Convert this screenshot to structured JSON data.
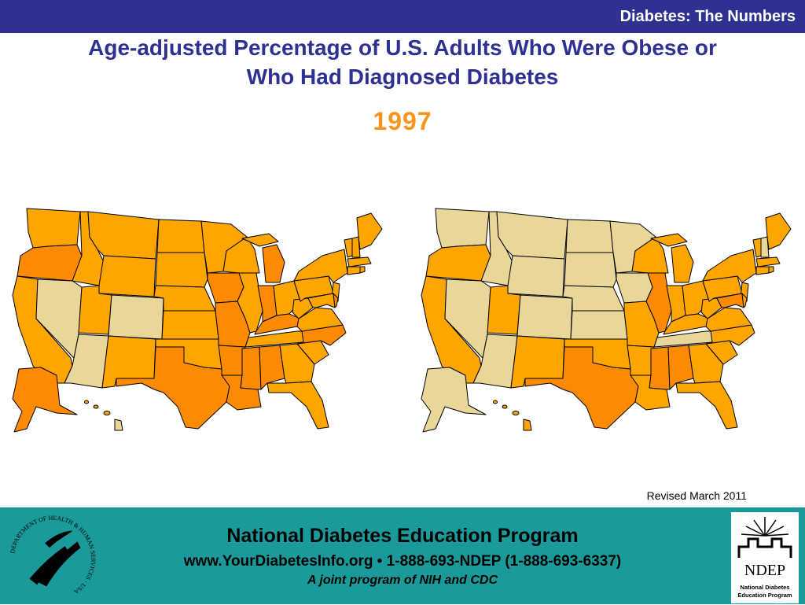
{
  "header": {
    "section_title": "Diabetes: The Numbers",
    "bar_color": "#2e3192"
  },
  "slide": {
    "title_line1": "Age-adjusted Percentage of U.S. Adults Who Were Obese or",
    "title_line2": "Who Had Diagnosed Diabetes",
    "year": "1997",
    "title_color": "#2e3192",
    "year_color": "#f7941d"
  },
  "maps": [
    {
      "name": "obesity",
      "dominant_color": "#fea500"
    },
    {
      "name": "diabetes",
      "dominant_color": "#e9d699"
    }
  ],
  "legend_colors": {
    "light": "#e9d699",
    "medium": "#fea500",
    "dark": "#fd8a01"
  },
  "revised": "Revised March 2011",
  "footer": {
    "org_name": "National Diabetes Education Program",
    "contact": "www.YourDiabetesInfo.org • 1-888-693-NDEP (1-888-693-6337)",
    "tagline": "A joint program of NIH and CDC",
    "background_color": "#1a9a9a",
    "seal_text": "DEPARTMENT OF HEALTH & HUMAN SERVICES · USA",
    "logo_text": "NDEP",
    "logo_caption_line1": "National Diabetes",
    "logo_caption_line2": "Education Program"
  }
}
